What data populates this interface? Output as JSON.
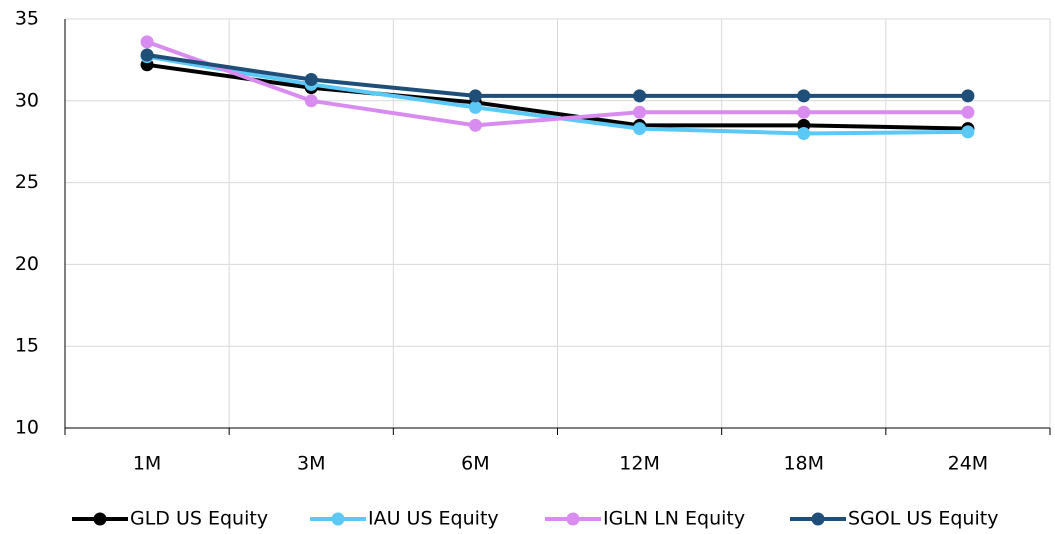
{
  "chart_data": {
    "type": "line",
    "categories": [
      "1M",
      "3M",
      "6M",
      "12M",
      "18M",
      "24M"
    ],
    "series": [
      {
        "name": "GLD US Equity",
        "color": "#000000",
        "values": [
          32.2,
          30.8,
          29.9,
          28.5,
          28.5,
          28.3
        ]
      },
      {
        "name": "IAU US Equity",
        "color": "#5bc8f5",
        "values": [
          32.7,
          31.0,
          29.6,
          28.3,
          28.0,
          28.1
        ]
      },
      {
        "name": "IGLN LN Equity",
        "color": "#d98cf0",
        "values": [
          33.6,
          30.0,
          28.5,
          29.3,
          29.3,
          29.3
        ]
      },
      {
        "name": "SGOL US Equity",
        "color": "#1f4e79",
        "values": [
          32.8,
          31.3,
          30.3,
          30.3,
          30.3,
          30.3
        ]
      }
    ],
    "ylim": [
      10,
      35
    ],
    "yticks": [
      10,
      15,
      20,
      25,
      30,
      35
    ],
    "grid": true,
    "legend": "bottom"
  }
}
